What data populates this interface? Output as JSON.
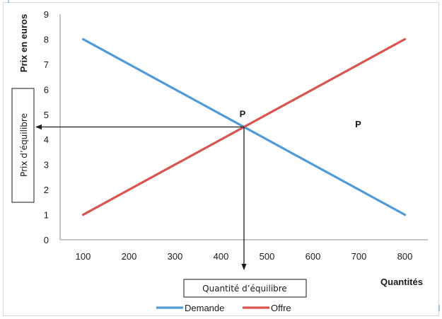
{
  "chart_data": {
    "type": "line",
    "title": "",
    "xlabel": "Quantités",
    "ylabel": "Prix en euros",
    "x_ticks": [
      100,
      200,
      300,
      400,
      500,
      600,
      700,
      800
    ],
    "y_ticks": [
      0,
      1,
      2,
      3,
      4,
      5,
      6,
      7,
      8,
      9
    ],
    "xlim": [
      50,
      850
    ],
    "ylim": [
      0,
      9
    ],
    "grid": false,
    "legend_position": "bottom",
    "series": [
      {
        "name": "Demande",
        "color": "#4f9ad8",
        "x": [
          100,
          800
        ],
        "y": [
          8,
          1
        ]
      },
      {
        "name": "Offre",
        "color": "#d9534f",
        "x": [
          100,
          800
        ],
        "y": [
          1,
          8
        ]
      }
    ],
    "equilibrium": {
      "x": 450,
      "y": 4.5,
      "label": "P"
    },
    "extra_label": {
      "x": 680,
      "y": 4.6,
      "text": "P"
    },
    "annotations": {
      "price_box": "Prix d’équilibre",
      "quantity_box": "Quantité d’équilibre"
    }
  }
}
